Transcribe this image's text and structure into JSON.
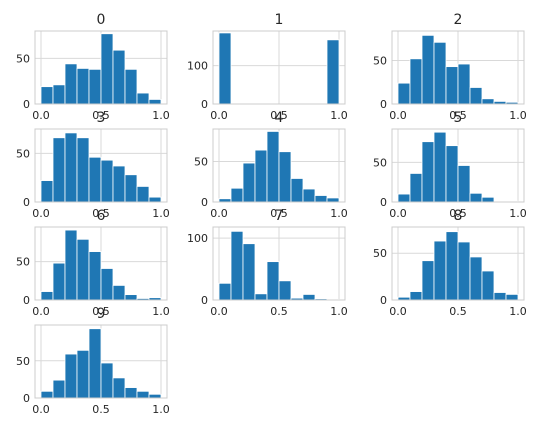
{
  "style": {
    "bar_color": "#1f77b4",
    "bar_edge": "#ffffff",
    "grid_color": "#d9d9d9",
    "spine_color": "#cccccc",
    "background": "#ffffff"
  },
  "chart_data": [
    {
      "type": "bar",
      "title": "0",
      "bins": 10,
      "xlim": [
        0,
        1
      ],
      "x_ticks": [
        "0.0",
        "0.5",
        "1.0"
      ],
      "y_ticks": [
        "0",
        "50"
      ],
      "ylim": [
        0,
        80
      ],
      "grid": true,
      "values": [
        19,
        21,
        44,
        39,
        38,
        77,
        59,
        38,
        12,
        5
      ]
    },
    {
      "type": "bar",
      "title": "1",
      "bins": 10,
      "xlim": [
        0,
        1
      ],
      "x_ticks": [
        "0.0",
        "0.5",
        "1.0"
      ],
      "y_ticks": [
        "0",
        "100"
      ],
      "ylim": [
        0,
        190
      ],
      "grid": true,
      "values": [
        185,
        0,
        0,
        0,
        0,
        0,
        0,
        0,
        0,
        167
      ]
    },
    {
      "type": "bar",
      "title": "2",
      "bins": 10,
      "xlim": [
        0,
        1
      ],
      "x_ticks": [
        "0.0",
        "0.5",
        "1.0"
      ],
      "y_ticks": [
        "0",
        "50"
      ],
      "ylim": [
        0,
        84
      ],
      "grid": true,
      "values": [
        24,
        52,
        79,
        71,
        43,
        46,
        19,
        6,
        3,
        2
      ]
    },
    {
      "type": "bar",
      "title": "3",
      "bins": 10,
      "xlim": [
        0,
        1
      ],
      "x_ticks": [
        "0.0",
        "0.5",
        "1.0"
      ],
      "y_ticks": [
        "0",
        "50"
      ],
      "ylim": [
        0,
        75
      ],
      "grid": true,
      "values": [
        22,
        66,
        71,
        66,
        46,
        43,
        37,
        28,
        16,
        5
      ]
    },
    {
      "type": "bar",
      "title": "4",
      "bins": 10,
      "xlim": [
        0,
        1
      ],
      "x_ticks": [
        "0.0",
        "0.5",
        "1.0"
      ],
      "y_ticks": [
        "0",
        "50"
      ],
      "ylim": [
        0,
        90
      ],
      "grid": true,
      "values": [
        4,
        17,
        48,
        64,
        87,
        62,
        29,
        16,
        8,
        5
      ]
    },
    {
      "type": "bar",
      "title": "5",
      "bins": 10,
      "xlim": [
        0,
        1
      ],
      "x_ticks": [
        "0.0",
        "0.5",
        "1.0"
      ],
      "y_ticks": [
        "0",
        "50"
      ],
      "ylim": [
        0,
        92
      ],
      "grid": true,
      "values": [
        10,
        36,
        76,
        88,
        71,
        46,
        11,
        6,
        0,
        1
      ]
    },
    {
      "type": "bar",
      "title": "6",
      "bins": 10,
      "xlim": [
        0,
        1
      ],
      "x_ticks": [
        "0.0",
        "0.5",
        "1.0"
      ],
      "y_ticks": [
        "0",
        "50"
      ],
      "ylim": [
        0,
        95
      ],
      "grid": true,
      "values": [
        11,
        48,
        91,
        79,
        63,
        41,
        19,
        7,
        2,
        3
      ]
    },
    {
      "type": "bar",
      "title": "7",
      "bins": 10,
      "xlim": [
        0,
        1
      ],
      "x_ticks": [
        "0.0",
        "0.5",
        "1.0"
      ],
      "y_ticks": [
        "0",
        "100"
      ],
      "ylim": [
        0,
        118
      ],
      "grid": true,
      "values": [
        27,
        111,
        91,
        10,
        62,
        31,
        3,
        9,
        2,
        1
      ]
    },
    {
      "type": "bar",
      "title": "8",
      "bins": 10,
      "xlim": [
        0,
        1
      ],
      "x_ticks": [
        "0.0",
        "0.5",
        "1.0"
      ],
      "y_ticks": [
        "0",
        "50"
      ],
      "ylim": [
        0,
        78
      ],
      "grid": true,
      "values": [
        3,
        9,
        42,
        63,
        73,
        62,
        46,
        31,
        8,
        6
      ]
    },
    {
      "type": "bar",
      "title": "9",
      "bins": 10,
      "xlim": [
        0,
        1
      ],
      "x_ticks": [
        "0.0",
        "0.5",
        "1.0"
      ],
      "y_ticks": [
        "0",
        "50"
      ],
      "ylim": [
        0,
        98
      ],
      "grid": true,
      "values": [
        9,
        24,
        59,
        64,
        93,
        47,
        27,
        14,
        9,
        5
      ]
    }
  ]
}
